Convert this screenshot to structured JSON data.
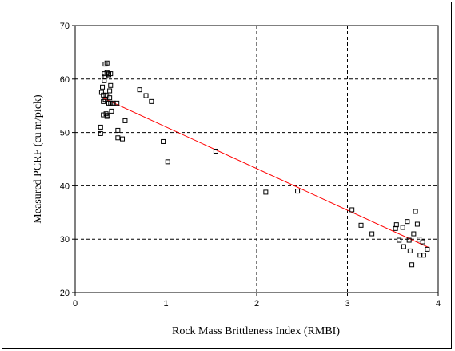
{
  "chart_data": {
    "type": "scatter",
    "title": "",
    "xlabel": "Rock Mass Brittleness Index (RMBI)",
    "ylabel": "Measured PCRF (cu m/pick)",
    "xlim": [
      0,
      4
    ],
    "ylim": [
      20,
      70
    ],
    "xticks": [
      0,
      1,
      2,
      3,
      4
    ],
    "yticks": [
      20,
      30,
      40,
      50,
      60,
      70
    ],
    "grid": true,
    "grid_style": "dashed",
    "legend": "none",
    "series": [
      {
        "marker": "open-square",
        "color": "#000000",
        "points": [
          [
            0.28,
            49.8
          ],
          [
            0.28,
            51.0
          ],
          [
            0.29,
            57.5
          ],
          [
            0.3,
            58.5
          ],
          [
            0.31,
            57.0
          ],
          [
            0.31,
            55.8
          ],
          [
            0.31,
            53.3
          ],
          [
            0.32,
            59.7
          ],
          [
            0.32,
            61.0
          ],
          [
            0.33,
            62.8
          ],
          [
            0.33,
            60.5
          ],
          [
            0.33,
            56.2
          ],
          [
            0.34,
            57.0
          ],
          [
            0.34,
            53.5
          ],
          [
            0.35,
            63.0
          ],
          [
            0.35,
            61.2
          ],
          [
            0.35,
            53.0
          ],
          [
            0.36,
            56.8
          ],
          [
            0.36,
            53.2
          ],
          [
            0.37,
            60.8
          ],
          [
            0.37,
            61.0
          ],
          [
            0.37,
            55.5
          ],
          [
            0.38,
            57.8
          ],
          [
            0.38,
            56.5
          ],
          [
            0.39,
            61.0
          ],
          [
            0.39,
            58.8
          ],
          [
            0.39,
            55.5
          ],
          [
            0.4,
            54.0
          ],
          [
            0.42,
            55.5
          ],
          [
            0.46,
            55.5
          ],
          [
            0.47,
            49.0
          ],
          [
            0.47,
            50.4
          ],
          [
            0.52,
            48.8
          ],
          [
            0.55,
            52.2
          ],
          [
            0.71,
            58.0
          ],
          [
            0.78,
            56.9
          ],
          [
            0.84,
            55.8
          ],
          [
            0.97,
            48.3
          ],
          [
            1.02,
            44.5
          ],
          [
            1.55,
            46.5
          ],
          [
            2.1,
            38.8
          ],
          [
            2.45,
            39.0
          ],
          [
            3.05,
            35.5
          ],
          [
            3.15,
            32.6
          ],
          [
            3.27,
            31.0
          ],
          [
            3.53,
            32.0
          ],
          [
            3.54,
            32.7
          ],
          [
            3.57,
            29.8
          ],
          [
            3.61,
            32.2
          ],
          [
            3.62,
            28.6
          ],
          [
            3.66,
            33.3
          ],
          [
            3.68,
            29.8
          ],
          [
            3.69,
            27.8
          ],
          [
            3.71,
            25.2
          ],
          [
            3.73,
            31.0
          ],
          [
            3.75,
            35.2
          ],
          [
            3.77,
            32.8
          ],
          [
            3.79,
            30.0
          ],
          [
            3.8,
            27.0
          ],
          [
            3.83,
            29.5
          ],
          [
            3.84,
            27.0
          ],
          [
            3.88,
            28.1
          ]
        ]
      }
    ],
    "trendline": {
      "type": "linear",
      "color": "#ff0000",
      "from": [
        0.3,
        56.5
      ],
      "to": [
        3.9,
        28.4
      ]
    }
  }
}
